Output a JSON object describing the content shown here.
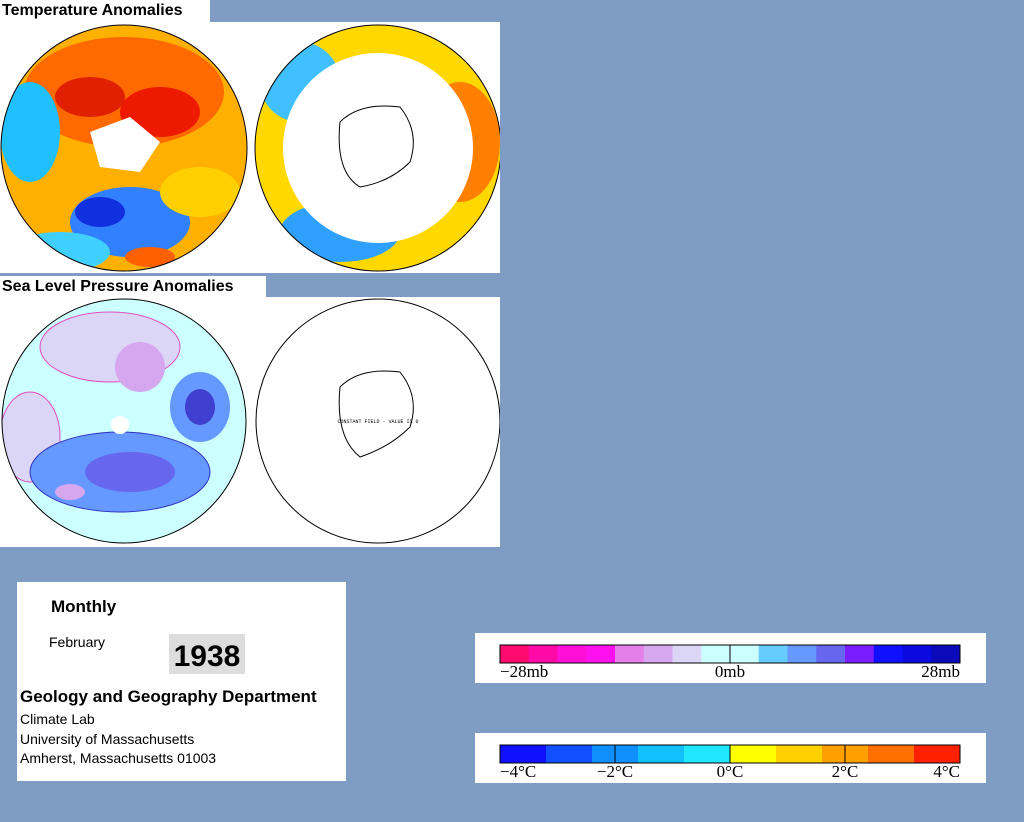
{
  "temperature_panel": {
    "title": "Temperature Anomalies"
  },
  "pressure_panel": {
    "title": "Sea Level Pressure Anomalies",
    "note": "CONSTANT FIELD - VALUE IS 0"
  },
  "info": {
    "period": "Monthly",
    "month": "February",
    "year": "1938",
    "department": "Geology and Geography Department",
    "lines": [
      "Climate Lab",
      "University of Massachusetts",
      "Amherst, Massachusetts 01003"
    ]
  },
  "pressure_scale": {
    "labels": [
      "−28mb",
      "0mb",
      "28mb"
    ],
    "colors": [
      "#ff0a6e",
      "#ff0aa8",
      "#ff10d8",
      "#ff10ee",
      "#e47ee8",
      "#d6a6ee",
      "#dcd6f6",
      "#ccffff",
      "#ccffff",
      "#66ccff",
      "#6699ff",
      "#6666ee",
      "#7a1eff",
      "#1010ff",
      "#0a0ae0",
      "#0a0ab8"
    ]
  },
  "temperature_scale": {
    "labels": [
      "−4°C",
      "−2°C",
      "0°C",
      "2°C",
      "4°C"
    ],
    "colors": [
      "#1010ff",
      "#1050ff",
      "#1090ff",
      "#10c0ff",
      "#20e6ff",
      "#ffff00",
      "#ffd000",
      "#ffa000",
      "#ff7000",
      "#ff2000"
    ]
  }
}
